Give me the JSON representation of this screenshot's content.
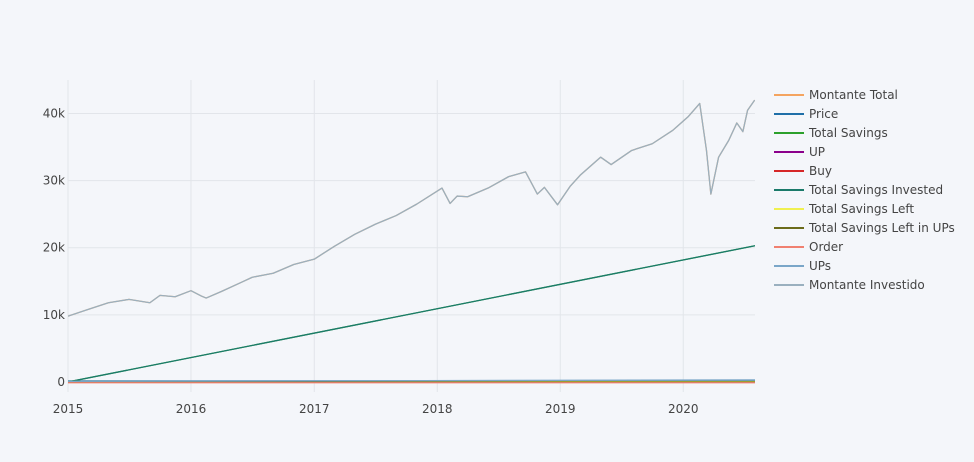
{
  "chart_data": {
    "type": "line",
    "title": "",
    "xlabel": "",
    "ylabel": "",
    "x_ticks": [
      "2015",
      "2016",
      "2017",
      "2018",
      "2019",
      "2020"
    ],
    "y_ticks": [
      "0",
      "10k",
      "20k",
      "30k",
      "40k"
    ],
    "xlim": [
      "2015-01-01",
      "2020-08-01"
    ],
    "ylim": [
      -1500,
      45000
    ],
    "grid": true,
    "legend_position": "right",
    "series": [
      {
        "name": "Montante Total",
        "color": "#f4a460",
        "x": [
          "2015-01-01",
          "2015-03-01",
          "2015-05-01",
          "2015-07-01",
          "2015-09-01",
          "2015-10-01",
          "2015-11-15",
          "2016-01-01",
          "2016-02-01",
          "2016-02-15",
          "2016-04-01",
          "2016-06-01",
          "2016-07-01",
          "2016-09-01",
          "2016-11-01",
          "2017-01-01",
          "2017-03-01",
          "2017-05-01",
          "2017-07-01",
          "2017-09-01",
          "2017-11-01",
          "2018-01-15",
          "2018-02-08",
          "2018-03-01",
          "2018-04-01",
          "2018-06-01",
          "2018-08-01",
          "2018-09-20",
          "2018-10-25",
          "2018-11-15",
          "2018-12-24",
          "2019-01-31",
          "2019-03-01",
          "2019-05-01",
          "2019-06-01",
          "2019-08-01",
          "2019-10-01",
          "2019-12-01",
          "2020-01-15",
          "2020-02-19",
          "2020-03-10",
          "2020-03-23",
          "2020-04-15",
          "2020-05-15",
          "2020-06-08",
          "2020-06-26",
          "2020-07-10",
          "2020-07-31"
        ],
        "y": [
          9800,
          10800,
          11800,
          12300,
          11800,
          12900,
          12700,
          13600,
          12800,
          12500,
          13500,
          14900,
          15600,
          16200,
          17500,
          18300,
          20200,
          22000,
          23500,
          24800,
          26500,
          28900,
          26600,
          27700,
          27600,
          28900,
          30600,
          31300,
          28000,
          29000,
          26400,
          29200,
          30800,
          33500,
          32400,
          34500,
          35500,
          37500,
          39500,
          41500,
          34500,
          28000,
          33500,
          36000,
          38600,
          37300,
          40500,
          42000
        ]
      },
      {
        "name": "Price",
        "color": "#1f6fa8",
        "x": [
          "2015-01-01",
          "2020-08-01"
        ],
        "y": [
          150,
          150
        ]
      },
      {
        "name": "Total Savings",
        "color": "#2ca02c",
        "x": [
          "2015-01-01",
          "2020-08-01"
        ],
        "y": [
          0,
          20300
        ]
      },
      {
        "name": "UP",
        "color": "#8b008b",
        "x": [
          "2015-01-01",
          "2020-08-01"
        ],
        "y": [
          30,
          30
        ]
      },
      {
        "name": "Buy",
        "color": "#d62728",
        "x": [
          "2015-01-01",
          "2020-08-01"
        ],
        "y": [
          -60,
          -60
        ]
      },
      {
        "name": "Total Savings Invested",
        "color": "#1a7a6a",
        "x": [
          "2015-01-01",
          "2020-08-01"
        ],
        "y": [
          0,
          20300
        ]
      },
      {
        "name": "Total Savings Left",
        "color": "#f0f050",
        "x": [
          "2015-01-01",
          "2020-08-01"
        ],
        "y": [
          60,
          60
        ]
      },
      {
        "name": "Total Savings Left in UPs",
        "color": "#6b6b1a",
        "x": [
          "2015-01-01",
          "2020-08-01"
        ],
        "y": [
          -20,
          -20
        ]
      },
      {
        "name": "Order",
        "color": "#f08070",
        "x": [
          "2015-01-01",
          "2020-08-01"
        ],
        "y": [
          -120,
          -120
        ]
      },
      {
        "name": "UPs",
        "color": "#7aa6c8",
        "x": [
          "2015-01-01",
          "2020-08-01"
        ],
        "y": [
          80,
          300
        ]
      },
      {
        "name": "Montante Investido",
        "color": "#9ab0bf",
        "x": [
          "2015-01-01",
          "2015-03-01",
          "2015-05-01",
          "2015-07-01",
          "2015-09-01",
          "2015-10-01",
          "2015-11-15",
          "2016-01-01",
          "2016-02-01",
          "2016-02-15",
          "2016-04-01",
          "2016-06-01",
          "2016-07-01",
          "2016-09-01",
          "2016-11-01",
          "2017-01-01",
          "2017-03-01",
          "2017-05-01",
          "2017-07-01",
          "2017-09-01",
          "2017-11-01",
          "2018-01-15",
          "2018-02-08",
          "2018-03-01",
          "2018-04-01",
          "2018-06-01",
          "2018-08-01",
          "2018-09-20",
          "2018-10-25",
          "2018-11-15",
          "2018-12-24",
          "2019-01-31",
          "2019-03-01",
          "2019-05-01",
          "2019-06-01",
          "2019-08-01",
          "2019-10-01",
          "2019-12-01",
          "2020-01-15",
          "2020-02-19",
          "2020-03-10",
          "2020-03-23",
          "2020-04-15",
          "2020-05-15",
          "2020-06-08",
          "2020-06-26",
          "2020-07-10",
          "2020-07-31"
        ],
        "y": [
          9800,
          10800,
          11800,
          12300,
          11800,
          12900,
          12700,
          13600,
          12800,
          12500,
          13500,
          14900,
          15600,
          16200,
          17500,
          18300,
          20200,
          22000,
          23500,
          24800,
          26500,
          28900,
          26600,
          27700,
          27600,
          28900,
          30600,
          31300,
          28000,
          29000,
          26400,
          29200,
          30800,
          33500,
          32400,
          34500,
          35500,
          37500,
          39500,
          41500,
          34500,
          28000,
          33500,
          36000,
          38600,
          37300,
          40500,
          42000
        ]
      }
    ]
  }
}
